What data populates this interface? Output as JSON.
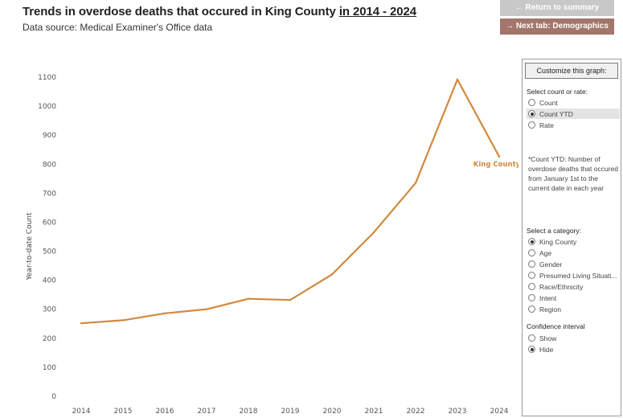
{
  "header": {
    "title_main": "Trends in overdose deaths that occured in King County ",
    "title_range": "in 2014 - 2024",
    "subtitle": "Data source: Medical Examiner's Office data"
  },
  "nav": {
    "return_label": "← Return to summary",
    "next_label": "→ Next tab: Demographics"
  },
  "chart_data": {
    "type": "line",
    "ylabel": "Year-to-date Count",
    "x": [
      "2014",
      "2015",
      "2016",
      "2017",
      "2018",
      "2019",
      "2020",
      "2021",
      "2022",
      "2023",
      "2024"
    ],
    "ylim": [
      0,
      1100
    ],
    "yticks": [
      "0",
      "100",
      "200",
      "300",
      "400",
      "500",
      "600",
      "700",
      "800",
      "900",
      "1000",
      "1100"
    ],
    "grid": false,
    "series": [
      {
        "name": "King County",
        "values": [
          252,
          262,
          286,
          300,
          336,
          332,
          420,
          565,
          735,
          1092,
          826
        ],
        "color": "#d1893d"
      }
    ]
  },
  "panel": {
    "title": "Customize this graph:",
    "count_rate": {
      "label": "Select count or rate:",
      "options": [
        "Count",
        "Count YTD",
        "Rate"
      ],
      "selected": 1
    },
    "note": "*Count YTD: Number of overdose deaths that occured from January 1st to the current date in each year",
    "category": {
      "label": "Select a category:",
      "options": [
        "King County",
        "Age",
        "Gender",
        "Presumed Living Situati...",
        "Race/Ethnicity",
        "Intent",
        "Region"
      ],
      "selected": 0
    },
    "ci": {
      "label": "Confidence interval",
      "options": [
        "Show",
        "Hide"
      ],
      "selected": 1
    }
  }
}
